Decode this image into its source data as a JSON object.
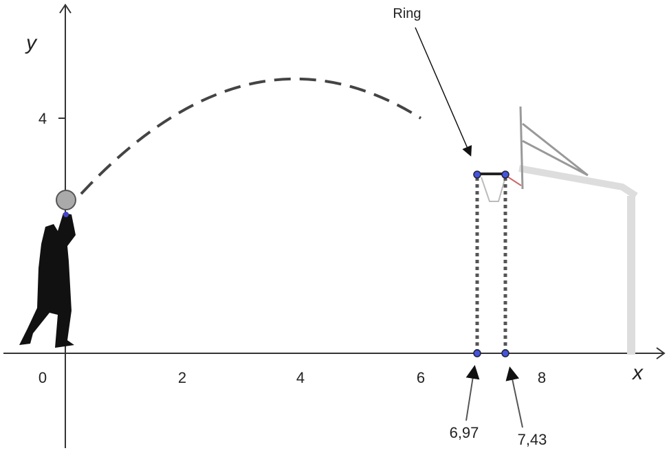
{
  "axes": {
    "x_label": "x",
    "y_label": "y",
    "x_ticks": [
      "0",
      "2",
      "4",
      "6",
      "8"
    ],
    "y_ticks": [
      "4"
    ]
  },
  "annotations": {
    "ring": "Ring",
    "left_point": "6,97",
    "right_point": "7,43"
  }
}
